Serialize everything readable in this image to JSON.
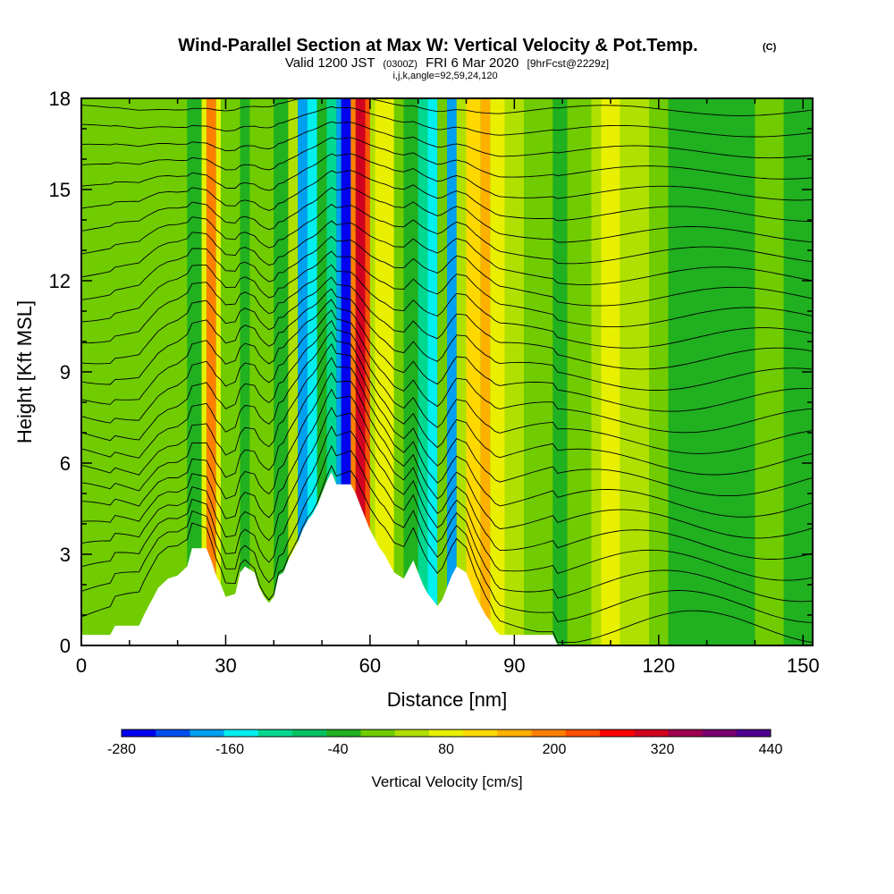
{
  "chart_data": {
    "type": "heatmap",
    "title": "Wind-Parallel Section at Max W: Vertical Velocity & Pot.Temp.",
    "title_mark": "(C)",
    "subtitle_valid": "Valid 1200 JST",
    "subtitle_utc": "(0300Z)",
    "subtitle_date": "FRI 6 Mar 2020",
    "subtitle_fcst": "[9hrFcst@2229z]",
    "subtitle_indices": "i,j,k,angle=92,59,24,120",
    "xlabel": "Distance [nm]",
    "ylabel": "Height [Kft MSL]",
    "xlim": [
      0,
      152
    ],
    "ylim": [
      0,
      18
    ],
    "x_ticks": [
      "0",
      "30",
      "60",
      "90",
      "120",
      "150"
    ],
    "y_ticks": [
      "0",
      "3",
      "6",
      "9",
      "12",
      "15",
      "18"
    ],
    "colorbar": {
      "title": "Vertical Velocity [cm/s]",
      "labels": [
        "-280",
        "-160",
        "-40",
        "80",
        "200",
        "320",
        "440"
      ],
      "colors": [
        "#0000f0",
        "#0050f0",
        "#00a0f0",
        "#00f0f0",
        "#00d890",
        "#00c060",
        "#20b020",
        "#70cc00",
        "#b0e000",
        "#e8f000",
        "#ffd800",
        "#ffb000",
        "#ff8000",
        "#ff5000",
        "#ff0000",
        "#d00020",
        "#a00050",
        "#7a0070",
        "#500090"
      ]
    },
    "background_color": "#20b020",
    "velocity_bands": [
      {
        "x": [
          0,
          22
        ],
        "value": -20,
        "color": "#70cc00"
      },
      {
        "x": [
          22,
          25
        ],
        "value": -40,
        "color": "#20b020"
      },
      {
        "x": [
          25,
          26
        ],
        "value": 100,
        "color": "#e8f000"
      },
      {
        "x": [
          26,
          28
        ],
        "value": 250,
        "color": "#ff8000"
      },
      {
        "x": [
          28,
          29
        ],
        "value": 100,
        "color": "#e8f000"
      },
      {
        "x": [
          29,
          33
        ],
        "value": -20,
        "color": "#70cc00"
      },
      {
        "x": [
          33,
          35
        ],
        "value": -40,
        "color": "#20b020"
      },
      {
        "x": [
          35,
          40
        ],
        "value": -20,
        "color": "#70cc00"
      },
      {
        "x": [
          40,
          43
        ],
        "value": -40,
        "color": "#20b020"
      },
      {
        "x": [
          43,
          45
        ],
        "value": 40,
        "color": "#b0e000"
      },
      {
        "x": [
          45,
          47
        ],
        "value": -120,
        "color": "#00a0f0"
      },
      {
        "x": [
          47,
          49
        ],
        "value": -160,
        "color": "#00f0f0"
      },
      {
        "x": [
          49,
          51
        ],
        "value": -40,
        "color": "#20b020"
      },
      {
        "x": [
          51,
          53
        ],
        "value": -100,
        "color": "#00d890"
      },
      {
        "x": [
          53,
          54
        ],
        "value": -200,
        "color": "#00a0f0"
      },
      {
        "x": [
          54,
          56
        ],
        "value": -280,
        "color": "#0000f0"
      },
      {
        "x": [
          56,
          57
        ],
        "value": 200,
        "color": "#ff8000"
      },
      {
        "x": [
          57,
          59
        ],
        "value": 340,
        "color": "#d00020"
      },
      {
        "x": [
          59,
          60
        ],
        "value": 240,
        "color": "#ff5000"
      },
      {
        "x": [
          60,
          61
        ],
        "value": 60,
        "color": "#b0e000"
      },
      {
        "x": [
          61,
          65
        ],
        "value": 120,
        "color": "#e8f000"
      },
      {
        "x": [
          65,
          67
        ],
        "value": -20,
        "color": "#70cc00"
      },
      {
        "x": [
          67,
          70
        ],
        "value": -40,
        "color": "#20b020"
      },
      {
        "x": [
          70,
          72
        ],
        "value": -100,
        "color": "#00d890"
      },
      {
        "x": [
          72,
          74
        ],
        "value": -160,
        "color": "#00f0f0"
      },
      {
        "x": [
          74,
          76
        ],
        "value": -20,
        "color": "#70cc00"
      },
      {
        "x": [
          76,
          78
        ],
        "value": -200,
        "color": "#00a0f0"
      },
      {
        "x": [
          78,
          80
        ],
        "value": 40,
        "color": "#b0e000"
      },
      {
        "x": [
          80,
          83
        ],
        "value": 150,
        "color": "#ffd800"
      },
      {
        "x": [
          83,
          85
        ],
        "value": 220,
        "color": "#ffb000"
      },
      {
        "x": [
          85,
          88
        ],
        "value": 80,
        "color": "#e8f000"
      },
      {
        "x": [
          88,
          92
        ],
        "value": 40,
        "color": "#b0e000"
      },
      {
        "x": [
          92,
          98
        ],
        "value": -20,
        "color": "#70cc00"
      },
      {
        "x": [
          98,
          101
        ],
        "value": -40,
        "color": "#20b020"
      },
      {
        "x": [
          101,
          106
        ],
        "value": -20,
        "color": "#70cc00"
      },
      {
        "x": [
          106,
          108
        ],
        "value": 40,
        "color": "#b0e000"
      },
      {
        "x": [
          108,
          112
        ],
        "value": 100,
        "color": "#e8f000"
      },
      {
        "x": [
          112,
          118
        ],
        "value": 40,
        "color": "#b0e000"
      },
      {
        "x": [
          118,
          122
        ],
        "value": -20,
        "color": "#70cc00"
      },
      {
        "x": [
          122,
          140
        ],
        "value": -40,
        "color": "#20b020"
      },
      {
        "x": [
          140,
          146
        ],
        "value": -20,
        "color": "#70cc00"
      },
      {
        "x": [
          146,
          152
        ],
        "value": -40,
        "color": "#20b020"
      }
    ],
    "terrain": [
      [
        0,
        0.35
      ],
      [
        6,
        0.35
      ],
      [
        7,
        0.65
      ],
      [
        12,
        0.65
      ],
      [
        13,
        1.0
      ],
      [
        14,
        1.3
      ],
      [
        15,
        1.6
      ],
      [
        16,
        1.9
      ],
      [
        18,
        2.2
      ],
      [
        20,
        2.3
      ],
      [
        22,
        2.6
      ],
      [
        23,
        3.2
      ],
      [
        26,
        3.2
      ],
      [
        27,
        2.8
      ],
      [
        28,
        2.3
      ],
      [
        29,
        2.0
      ],
      [
        30,
        1.6
      ],
      [
        32,
        1.7
      ],
      [
        33,
        2.4
      ],
      [
        34,
        2.6
      ],
      [
        36,
        2.4
      ],
      [
        37,
        1.9
      ],
      [
        38,
        1.6
      ],
      [
        39,
        1.4
      ],
      [
        40,
        1.6
      ],
      [
        41,
        2.3
      ],
      [
        42,
        2.4
      ],
      [
        43,
        2.8
      ],
      [
        44,
        3.1
      ],
      [
        45,
        3.4
      ],
      [
        46,
        3.8
      ],
      [
        47,
        4.1
      ],
      [
        48,
        4.3
      ],
      [
        49,
        4.6
      ],
      [
        50,
        5.0
      ],
      [
        51,
        5.4
      ],
      [
        52,
        5.7
      ],
      [
        53,
        5.3
      ],
      [
        56,
        5.3
      ],
      [
        57,
        5.0
      ],
      [
        58,
        4.6
      ],
      [
        59,
        4.2
      ],
      [
        60,
        3.8
      ],
      [
        61,
        3.5
      ],
      [
        62,
        3.2
      ],
      [
        63,
        3.0
      ],
      [
        64,
        2.7
      ],
      [
        65,
        2.4
      ],
      [
        67,
        2.2
      ],
      [
        68,
        2.5
      ],
      [
        69,
        2.8
      ],
      [
        70,
        2.4
      ],
      [
        71,
        2.0
      ],
      [
        72,
        1.7
      ],
      [
        73,
        1.5
      ],
      [
        74,
        1.3
      ],
      [
        75,
        1.5
      ],
      [
        76,
        1.9
      ],
      [
        77,
        2.3
      ],
      [
        78,
        2.6
      ],
      [
        80,
        2.4
      ],
      [
        81,
        2.0
      ],
      [
        82,
        1.6
      ],
      [
        83,
        1.3
      ],
      [
        84,
        1.0
      ],
      [
        85,
        0.8
      ],
      [
        86,
        0.5
      ],
      [
        87,
        0.35
      ],
      [
        98,
        0.35
      ],
      [
        99,
        0.0
      ]
    ],
    "theta_contours": 26
  }
}
